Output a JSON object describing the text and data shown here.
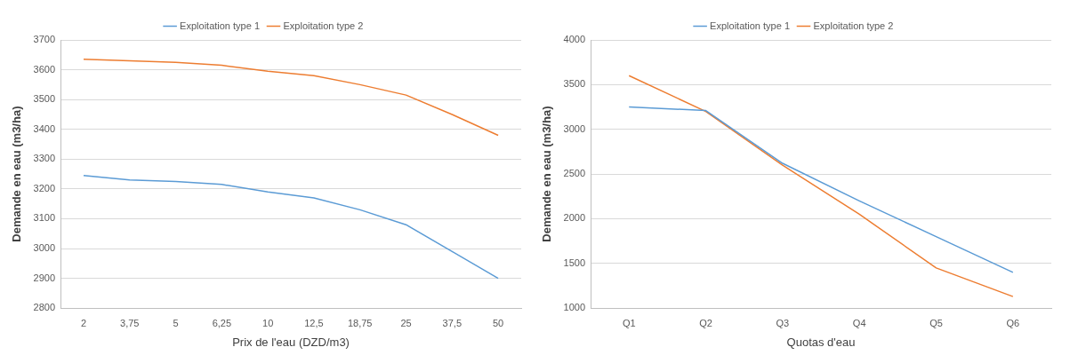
{
  "chart_data": [
    {
      "type": "line",
      "xlabel": "Prix de l'eau (DZD/m3)",
      "ylabel": "Demande en eau (m3/ha)",
      "categories": [
        "2",
        "3,75",
        "5",
        "6,25",
        "10",
        "12,5",
        "18,75",
        "25",
        "37,5",
        "50"
      ],
      "series": [
        {
          "name": "Exploitation type 1",
          "color": "#5b9bd5",
          "values": [
            3245,
            3230,
            3225,
            3215,
            3190,
            3170,
            3130,
            3080,
            2990,
            2900
          ]
        },
        {
          "name": "Exploitation type 2",
          "color": "#ed7d31",
          "values": [
            3635,
            3630,
            3625,
            3615,
            3595,
            3580,
            3550,
            3515,
            3450,
            3380
          ]
        }
      ],
      "ylim": [
        2800,
        3700
      ],
      "yticks": [
        2800,
        2900,
        3000,
        3100,
        3200,
        3300,
        3400,
        3500,
        3600,
        3700
      ],
      "grid": "y",
      "legend": "top",
      "marker": "none",
      "line_style": "solid"
    },
    {
      "type": "line",
      "xlabel": "Quotas d'eau",
      "ylabel": "Demande en eau (m3/ha)",
      "categories": [
        "Q1",
        "Q2",
        "Q3",
        "Q4",
        "Q5",
        "Q6"
      ],
      "series": [
        {
          "name": "Exploitation type 1",
          "color": "#5b9bd5",
          "values": [
            3250,
            3210,
            2620,
            2200,
            1800,
            1400
          ]
        },
        {
          "name": "Exploitation type 2",
          "color": "#ed7d31",
          "values": [
            3600,
            3200,
            2600,
            2050,
            1450,
            1130
          ]
        }
      ],
      "ylim": [
        1000,
        4000
      ],
      "yticks": [
        1000,
        1500,
        2000,
        2500,
        3000,
        3500,
        4000
      ],
      "grid": "y",
      "legend": "top",
      "marker": "none",
      "line_style": "solid"
    }
  ]
}
